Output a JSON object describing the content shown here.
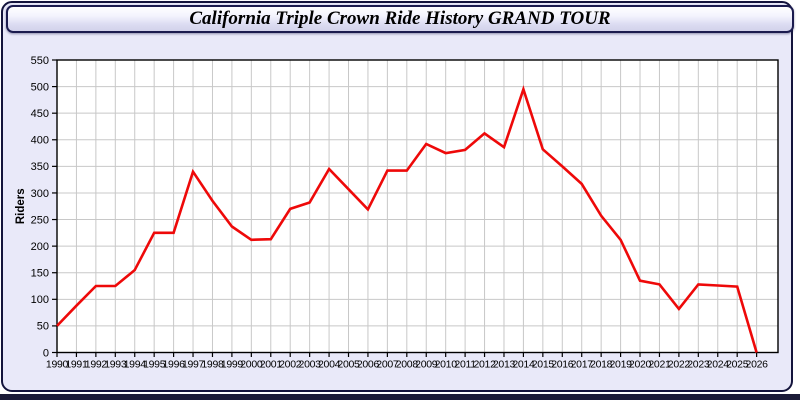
{
  "window": {
    "title": "California Triple Crown Ride History GRAND TOUR"
  },
  "colors": {
    "line": "#ee0909",
    "panel_background": "#e9e9f9",
    "titlebar_border": "#1b1b4e",
    "plot_background": "#ffffff",
    "grid": "#c8c8c8",
    "axis": "#000000"
  },
  "chart_data": {
    "type": "line",
    "title": "California Triple Crown Ride History GRAND TOUR",
    "xlabel": "",
    "ylabel": "Riders",
    "ylim": [
      0,
      550
    ],
    "xlim": [
      1990,
      2027
    ],
    "grid": true,
    "legend": false,
    "yticks": [
      0,
      50,
      100,
      150,
      200,
      250,
      300,
      350,
      400,
      450,
      500,
      550
    ],
    "x": [
      1990,
      1991,
      1992,
      1993,
      1994,
      1995,
      1996,
      1997,
      1998,
      1999,
      2000,
      2001,
      2002,
      2003,
      2004,
      2005,
      2006,
      2007,
      2008,
      2009,
      2010,
      2011,
      2012,
      2013,
      2014,
      2015,
      2016,
      2017,
      2018,
      2019,
      2020,
      2021,
      2022,
      2023,
      2024,
      2025,
      2026
    ],
    "series": [
      {
        "name": "Riders",
        "color": "#ee0909",
        "values": [
          50,
          88,
          125,
          125,
          155,
          225,
          225,
          340,
          285,
          237,
          212,
          213,
          270,
          282,
          345,
          307,
          269,
          342,
          342,
          392,
          375,
          381,
          412,
          386,
          495,
          382,
          350,
          317,
          257,
          212,
          135,
          128,
          82,
          128,
          126,
          124,
          0
        ]
      }
    ]
  }
}
